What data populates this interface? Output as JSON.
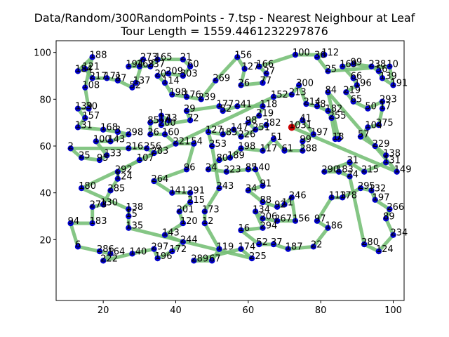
{
  "chart_data": {
    "type": "scatter",
    "title_line1": "Data/Random/300RandomPoints - 7.tsp - Nearest Neighbour at Leaf",
    "title_line2": "Tour Length = 1559.4461232297876",
    "xlabel": "",
    "ylabel": "",
    "xlim": [
      7,
      103
    ],
    "ylim": [
      -6,
      105
    ],
    "x_ticks": [
      20,
      40,
      60,
      80,
      100
    ],
    "y_ticks": [
      20,
      40,
      60,
      80,
      100
    ],
    "grid": false,
    "colors": {
      "point": "#0000cc",
      "tour": "#78c078",
      "start": "#cc0000",
      "axes": "#000000"
    },
    "point_count": 300,
    "labeled_points": [
      {
        "label": "188",
        "x": 17,
        "y": 98
      },
      {
        "label": "121",
        "x": 15,
        "y": 93
      },
      {
        "label": "184",
        "x": 13,
        "y": 92
      },
      {
        "label": "217",
        "x": 17,
        "y": 89
      },
      {
        "label": "171",
        "x": 21,
        "y": 89
      },
      {
        "label": "87",
        "x": 24,
        "y": 88
      },
      {
        "label": "108",
        "x": 15,
        "y": 85
      },
      {
        "label": "52",
        "x": 28,
        "y": 85
      },
      {
        "label": "137",
        "x": 29,
        "y": 87
      },
      {
        "label": "114",
        "x": 37,
        "y": 87
      },
      {
        "label": "273",
        "x": 31,
        "y": 97
      },
      {
        "label": "165",
        "x": 35,
        "y": 97
      },
      {
        "label": "194",
        "x": 27,
        "y": 94
      },
      {
        "label": "168",
        "x": 30,
        "y": 94
      },
      {
        "label": "237",
        "x": 33,
        "y": 94
      },
      {
        "label": "21",
        "x": 42,
        "y": 97
      },
      {
        "label": "209",
        "x": 38,
        "y": 91
      },
      {
        "label": "60",
        "x": 44,
        "y": 94
      },
      {
        "label": "20",
        "x": 35,
        "y": 90
      },
      {
        "label": "303",
        "x": 42,
        "y": 90
      },
      {
        "label": "269",
        "x": 51,
        "y": 88
      },
      {
        "label": "198",
        "x": 39,
        "y": 82
      },
      {
        "label": "176",
        "x": 43,
        "y": 81
      },
      {
        "label": "239",
        "x": 47,
        "y": 80
      },
      {
        "label": "29",
        "x": 43,
        "y": 75
      },
      {
        "label": "177",
        "x": 52,
        "y": 77
      },
      {
        "label": "72",
        "x": 44,
        "y": 71
      },
      {
        "label": "139",
        "x": 13,
        "y": 76
      },
      {
        "label": "30",
        "x": 16,
        "y": 76
      },
      {
        "label": "157",
        "x": 15,
        "y": 72
      },
      {
        "label": "131",
        "x": 13,
        "y": 68
      },
      {
        "label": "168",
        "x": 20,
        "y": 67
      },
      {
        "label": "3",
        "x": 24,
        "y": 66
      },
      {
        "label": "1",
        "x": 36,
        "y": 73
      },
      {
        "label": "17",
        "x": 36,
        "y": 71
      },
      {
        "label": "43",
        "x": 38,
        "y": 71
      },
      {
        "label": "85",
        "x": 33,
        "y": 70
      },
      {
        "label": "200",
        "x": 36,
        "y": 69
      },
      {
        "label": "298",
        "x": 27,
        "y": 65
      },
      {
        "label": "26",
        "x": 33,
        "y": 65
      },
      {
        "label": "160",
        "x": 37,
        "y": 65
      },
      {
        "label": "100",
        "x": 18,
        "y": 62
      },
      {
        "label": "143",
        "x": 22,
        "y": 62
      },
      {
        "label": "2",
        "x": 11,
        "y": 59
      },
      {
        "label": "25",
        "x": 14,
        "y": 55
      },
      {
        "label": "95",
        "x": 19,
        "y": 54
      },
      {
        "label": "133",
        "x": 21,
        "y": 56
      },
      {
        "label": "216",
        "x": 27,
        "y": 59
      },
      {
        "label": "256",
        "x": 32,
        "y": 59
      },
      {
        "label": "283",
        "x": 34,
        "y": 57
      },
      {
        "label": "107",
        "x": 30,
        "y": 54
      },
      {
        "label": "221",
        "x": 40,
        "y": 61
      },
      {
        "label": "54",
        "x": 45,
        "y": 61
      },
      {
        "label": "253",
        "x": 50,
        "y": 60
      },
      {
        "label": "292",
        "x": 24,
        "y": 49
      },
      {
        "label": "124",
        "x": 24,
        "y": 46
      },
      {
        "label": "180",
        "x": 14,
        "y": 42
      },
      {
        "label": "285",
        "x": 22,
        "y": 41
      },
      {
        "label": "264",
        "x": 34,
        "y": 45
      },
      {
        "label": "96",
        "x": 43,
        "y": 50
      },
      {
        "label": "24",
        "x": 49,
        "y": 50
      },
      {
        "label": "80",
        "x": 52,
        "y": 54
      },
      {
        "label": "189",
        "x": 55,
        "y": 55
      },
      {
        "label": "223",
        "x": 54,
        "y": 49
      },
      {
        "label": "243",
        "x": 52,
        "y": 42
      },
      {
        "label": "291",
        "x": 44,
        "y": 40
      },
      {
        "label": "141",
        "x": 39,
        "y": 40
      },
      {
        "label": "215",
        "x": 44,
        "y": 36
      },
      {
        "label": "273",
        "x": 17,
        "y": 34
      },
      {
        "label": "130",
        "x": 20,
        "y": 35
      },
      {
        "label": "138",
        "x": 27,
        "y": 33
      },
      {
        "label": "15",
        "x": 27,
        "y": 30
      },
      {
        "label": "201",
        "x": 41,
        "y": 32
      },
      {
        "label": "173",
        "x": 48,
        "y": 32
      },
      {
        "label": "94",
        "x": 11,
        "y": 27
      },
      {
        "label": "183",
        "x": 17,
        "y": 27
      },
      {
        "label": "135",
        "x": 27,
        "y": 25
      },
      {
        "label": "120",
        "x": 42,
        "y": 27
      },
      {
        "label": "12",
        "x": 48,
        "y": 27
      },
      {
        "label": "143",
        "x": 37,
        "y": 22
      },
      {
        "label": "244",
        "x": 42,
        "y": 19
      },
      {
        "label": "6",
        "x": 13,
        "y": 17
      },
      {
        "label": "286",
        "x": 19,
        "y": 15
      },
      {
        "label": "164",
        "x": 22,
        "y": 14
      },
      {
        "label": "222",
        "x": 20,
        "y": 11
      },
      {
        "label": "140",
        "x": 28,
        "y": 14
      },
      {
        "label": "297",
        "x": 34,
        "y": 16
      },
      {
        "label": "196",
        "x": 35,
        "y": 12
      },
      {
        "label": "172",
        "x": 39,
        "y": 15
      },
      {
        "label": "289",
        "x": 45,
        "y": 11
      },
      {
        "label": "67",
        "x": 50,
        "y": 11
      },
      {
        "label": "119",
        "x": 52,
        "y": 16
      },
      {
        "label": "16",
        "x": 58,
        "y": 24
      },
      {
        "label": "174",
        "x": 58,
        "y": 16
      },
      {
        "label": "225",
        "x": 61,
        "y": 12
      },
      {
        "label": "52",
        "x": 63,
        "y": 18
      },
      {
        "label": "37",
        "x": 67,
        "y": 18
      },
      {
        "label": "187",
        "x": 71,
        "y": 16
      },
      {
        "label": "22",
        "x": 78,
        "y": 17
      },
      {
        "label": "280",
        "x": 92,
        "y": 18
      },
      {
        "label": "124",
        "x": 96,
        "y": 15
      },
      {
        "label": "234",
        "x": 100,
        "y": 22
      },
      {
        "label": "89",
        "x": 98,
        "y": 29
      },
      {
        "label": "266",
        "x": 99,
        "y": 33
      },
      {
        "label": "197",
        "x": 95,
        "y": 37
      },
      {
        "label": "132",
        "x": 94,
        "y": 41
      },
      {
        "label": "295",
        "x": 91,
        "y": 42
      },
      {
        "label": "178",
        "x": 86,
        "y": 38
      },
      {
        "label": "113",
        "x": 83,
        "y": 38
      },
      {
        "label": "31",
        "x": 88,
        "y": 53
      },
      {
        "label": "183",
        "x": 85,
        "y": 49
      },
      {
        "label": "24",
        "x": 88,
        "y": 47
      },
      {
        "label": "290",
        "x": 81,
        "y": 49
      },
      {
        "label": "215",
        "x": 92,
        "y": 49
      },
      {
        "label": "149",
        "x": 101,
        "y": 49
      },
      {
        "label": "138",
        "x": 98,
        "y": 56
      },
      {
        "label": "131",
        "x": 98,
        "y": 53
      },
      {
        "label": "229",
        "x": 95,
        "y": 60
      },
      {
        "label": "57",
        "x": 91,
        "y": 64
      },
      {
        "label": "275",
        "x": 96,
        "y": 69
      },
      {
        "label": "104",
        "x": 93,
        "y": 68
      },
      {
        "label": "7",
        "x": 85,
        "y": 63
      },
      {
        "label": "18",
        "x": 84,
        "y": 63
      },
      {
        "label": "197",
        "x": 78,
        "y": 65
      },
      {
        "label": "156",
        "x": 73,
        "y": 28
      },
      {
        "label": "97",
        "x": 79,
        "y": 28
      },
      {
        "label": "186",
        "x": 82,
        "y": 25
      },
      {
        "label": "246",
        "x": 72,
        "y": 38
      },
      {
        "label": "92",
        "x": 68,
        "y": 34
      },
      {
        "label": "11",
        "x": 70,
        "y": 35
      },
      {
        "label": "88",
        "x": 64,
        "y": 36
      },
      {
        "label": "134",
        "x": 62,
        "y": 32
      },
      {
        "label": "206",
        "x": 64,
        "y": 29
      },
      {
        "label": "267",
        "x": 68,
        "y": 28
      },
      {
        "label": "294",
        "x": 64,
        "y": 25
      },
      {
        "label": "91",
        "x": 64,
        "y": 43
      },
      {
        "label": "34",
        "x": 60,
        "y": 41
      },
      {
        "label": "140",
        "x": 62,
        "y": 50
      },
      {
        "label": "85",
        "x": 60,
        "y": 50
      },
      {
        "label": "117",
        "x": 64,
        "y": 58
      },
      {
        "label": "198",
        "x": 58,
        "y": 59
      },
      {
        "label": "61",
        "x": 70,
        "y": 58
      },
      {
        "label": "288",
        "x": 75,
        "y": 58
      },
      {
        "label": "99",
        "x": 75,
        "y": 62
      },
      {
        "label": "51",
        "x": 67,
        "y": 63
      },
      {
        "label": "41",
        "x": 75,
        "y": 71
      },
      {
        "label": "1031",
        "x": 72,
        "y": 68
      },
      {
        "label": "282",
        "x": 65,
        "y": 69
      },
      {
        "label": "251",
        "x": 62,
        "y": 67
      },
      {
        "label": "226",
        "x": 58,
        "y": 64
      },
      {
        "label": "147",
        "x": 56,
        "y": 67
      },
      {
        "label": "185",
        "x": 53,
        "y": 65
      },
      {
        "label": "127",
        "x": 49,
        "y": 66
      },
      {
        "label": "98",
        "x": 60,
        "y": 70
      },
      {
        "label": "219",
        "x": 63,
        "y": 73
      },
      {
        "label": "118",
        "x": 64,
        "y": 77
      },
      {
        "label": "241",
        "x": 57,
        "y": 77
      },
      {
        "label": "52",
        "x": 53,
        "y": 75
      },
      {
        "label": "152",
        "x": 67,
        "y": 81
      },
      {
        "label": "300",
        "x": 74,
        "y": 86
      },
      {
        "label": "213",
        "x": 72,
        "y": 82
      },
      {
        "label": "214",
        "x": 76,
        "y": 78
      },
      {
        "label": "38",
        "x": 79,
        "y": 77
      },
      {
        "label": "182",
        "x": 82,
        "y": 75
      },
      {
        "label": "255",
        "x": 83,
        "y": 72
      },
      {
        "label": "26",
        "x": 58,
        "y": 86
      },
      {
        "label": "77",
        "x": 64,
        "y": 87
      },
      {
        "label": "27",
        "x": 65,
        "y": 91
      },
      {
        "label": "166",
        "x": 63,
        "y": 94
      },
      {
        "label": "127",
        "x": 59,
        "y": 93
      },
      {
        "label": "156",
        "x": 57,
        "y": 98
      },
      {
        "label": "100",
        "x": 73,
        "y": 99
      },
      {
        "label": "112",
        "x": 81,
        "y": 99
      },
      {
        "label": "36",
        "x": 79,
        "y": 98
      },
      {
        "label": "25",
        "x": 82,
        "y": 92
      },
      {
        "label": "169",
        "x": 86,
        "y": 94
      },
      {
        "label": "99",
        "x": 89,
        "y": 95
      },
      {
        "label": "238",
        "x": 94,
        "y": 94
      },
      {
        "label": "10",
        "x": 99,
        "y": 94
      },
      {
        "label": "56",
        "x": 96,
        "y": 92
      },
      {
        "label": "139",
        "x": 97,
        "y": 89
      },
      {
        "label": "66",
        "x": 89,
        "y": 89
      },
      {
        "label": "196",
        "x": 90,
        "y": 86
      },
      {
        "label": "191",
        "x": 100,
        "y": 86
      },
      {
        "label": "219",
        "x": 87,
        "y": 83
      },
      {
        "label": "84",
        "x": 82,
        "y": 83
      },
      {
        "label": "65",
        "x": 89,
        "y": 79
      },
      {
        "label": "50",
        "x": 93,
        "y": 76
      },
      {
        "label": "293",
        "x": 97,
        "y": 79
      },
      {
        "label": "17",
        "x": 97,
        "y": 76
      }
    ],
    "start_point": {
      "label": "start",
      "x": 72,
      "y": 68
    }
  }
}
